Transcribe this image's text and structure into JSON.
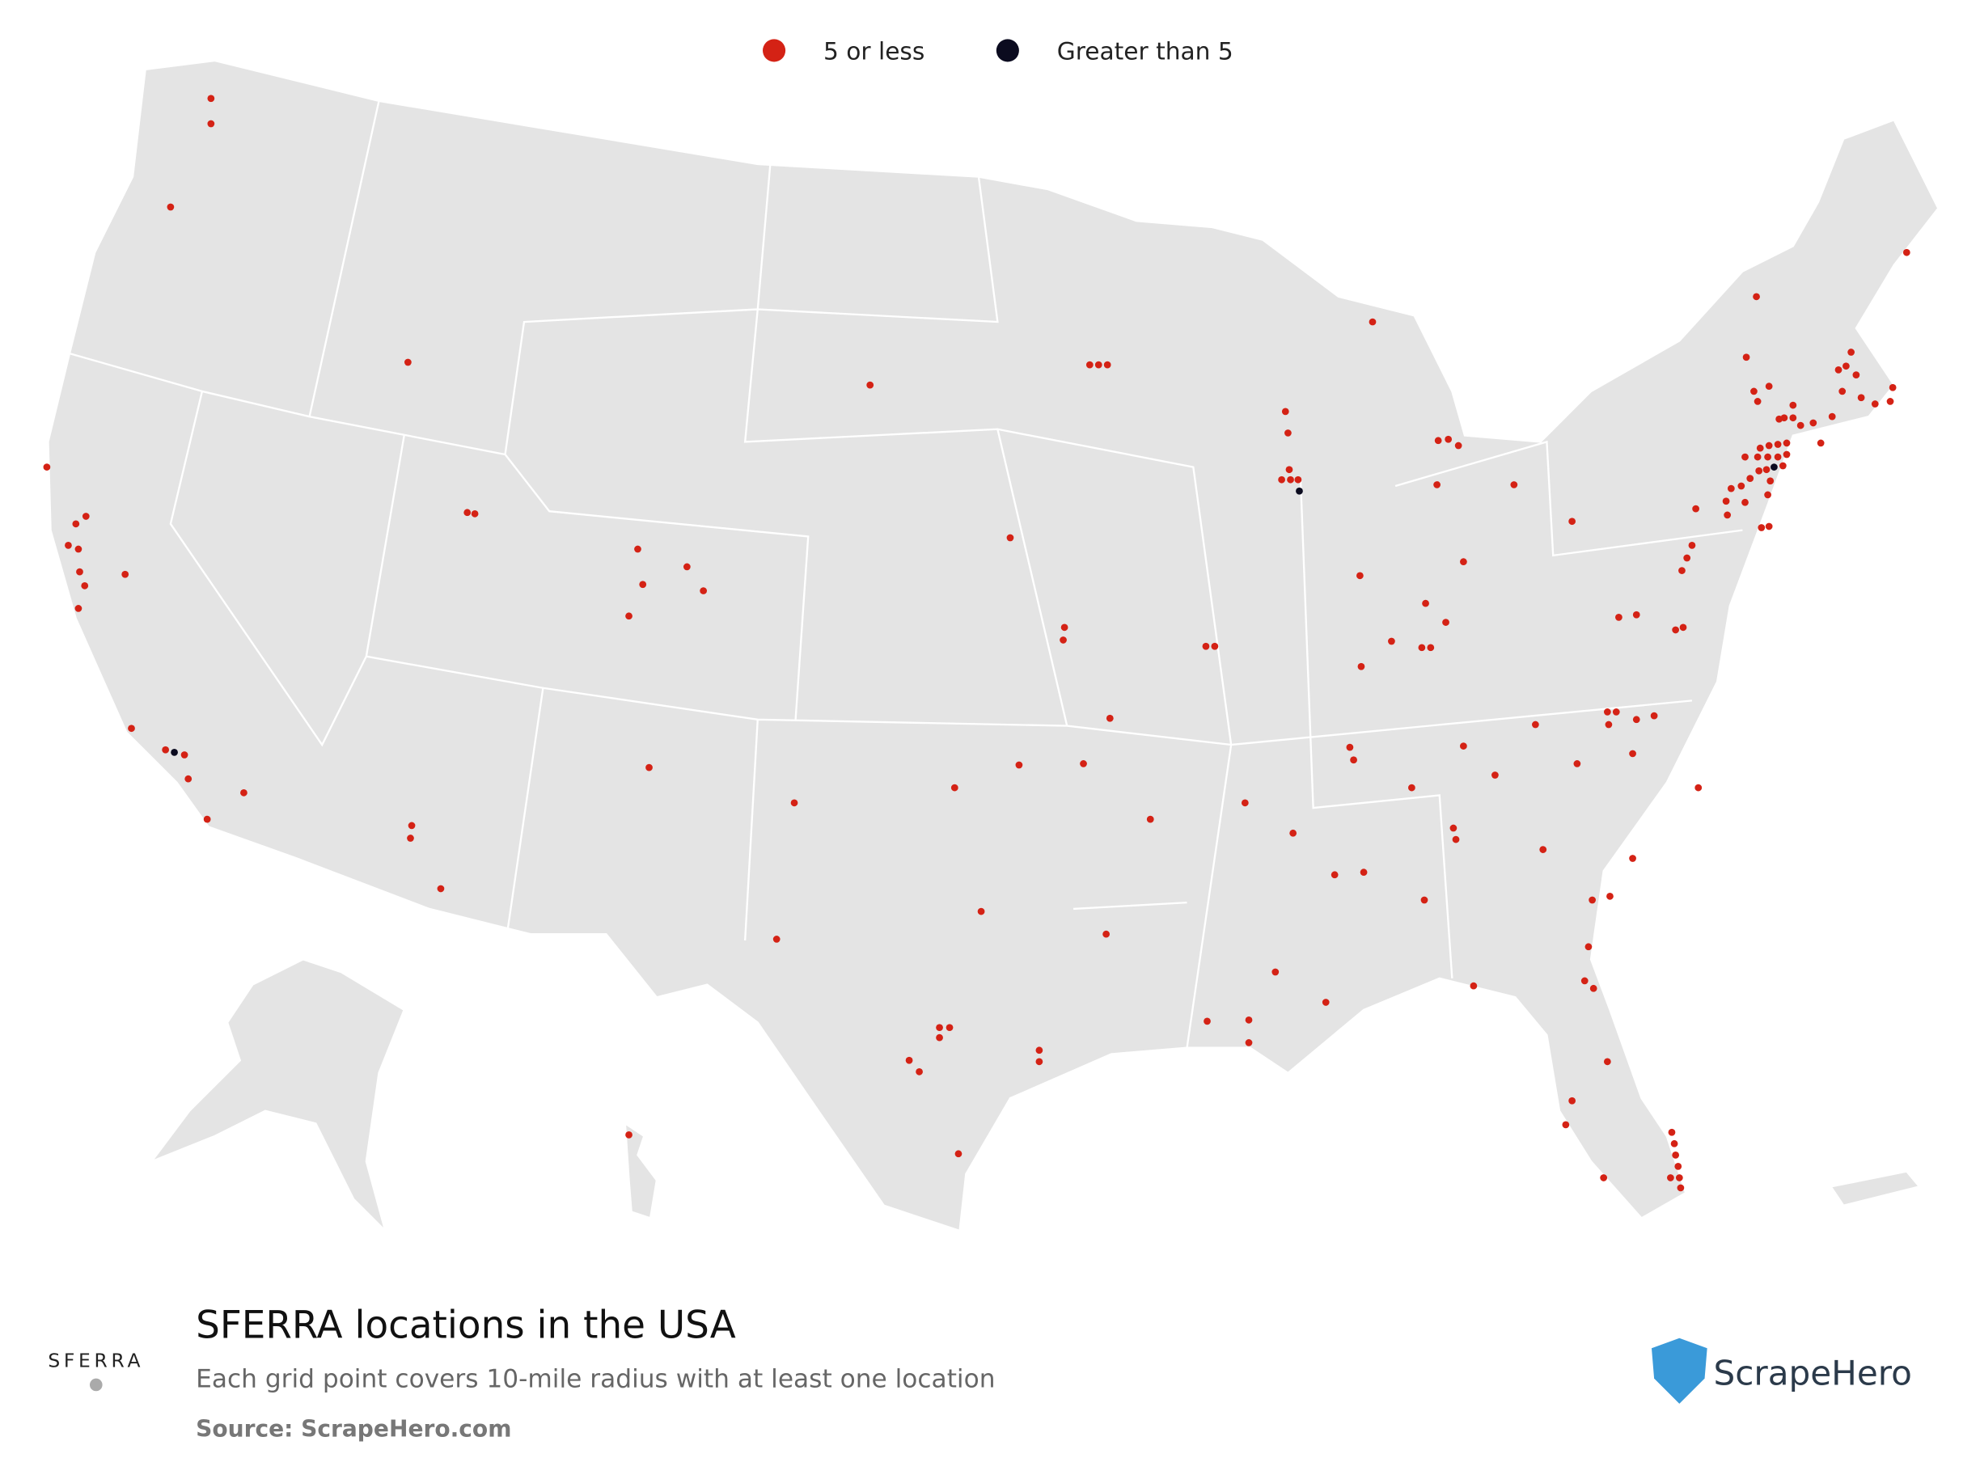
{
  "legend": {
    "items": [
      {
        "label": "5 or less",
        "color": "#d42215"
      },
      {
        "label": "Greater than 5",
        "color": "#0b0b1f"
      }
    ]
  },
  "footer": {
    "title": "SFERRA locations in the USA",
    "subtitle": "Each grid point covers 10-mile radius with at least one location",
    "source": "Source: ScrapeHero.com",
    "brand_logo": "SFERRA",
    "provider_logo": "ScrapeHero"
  }
}
